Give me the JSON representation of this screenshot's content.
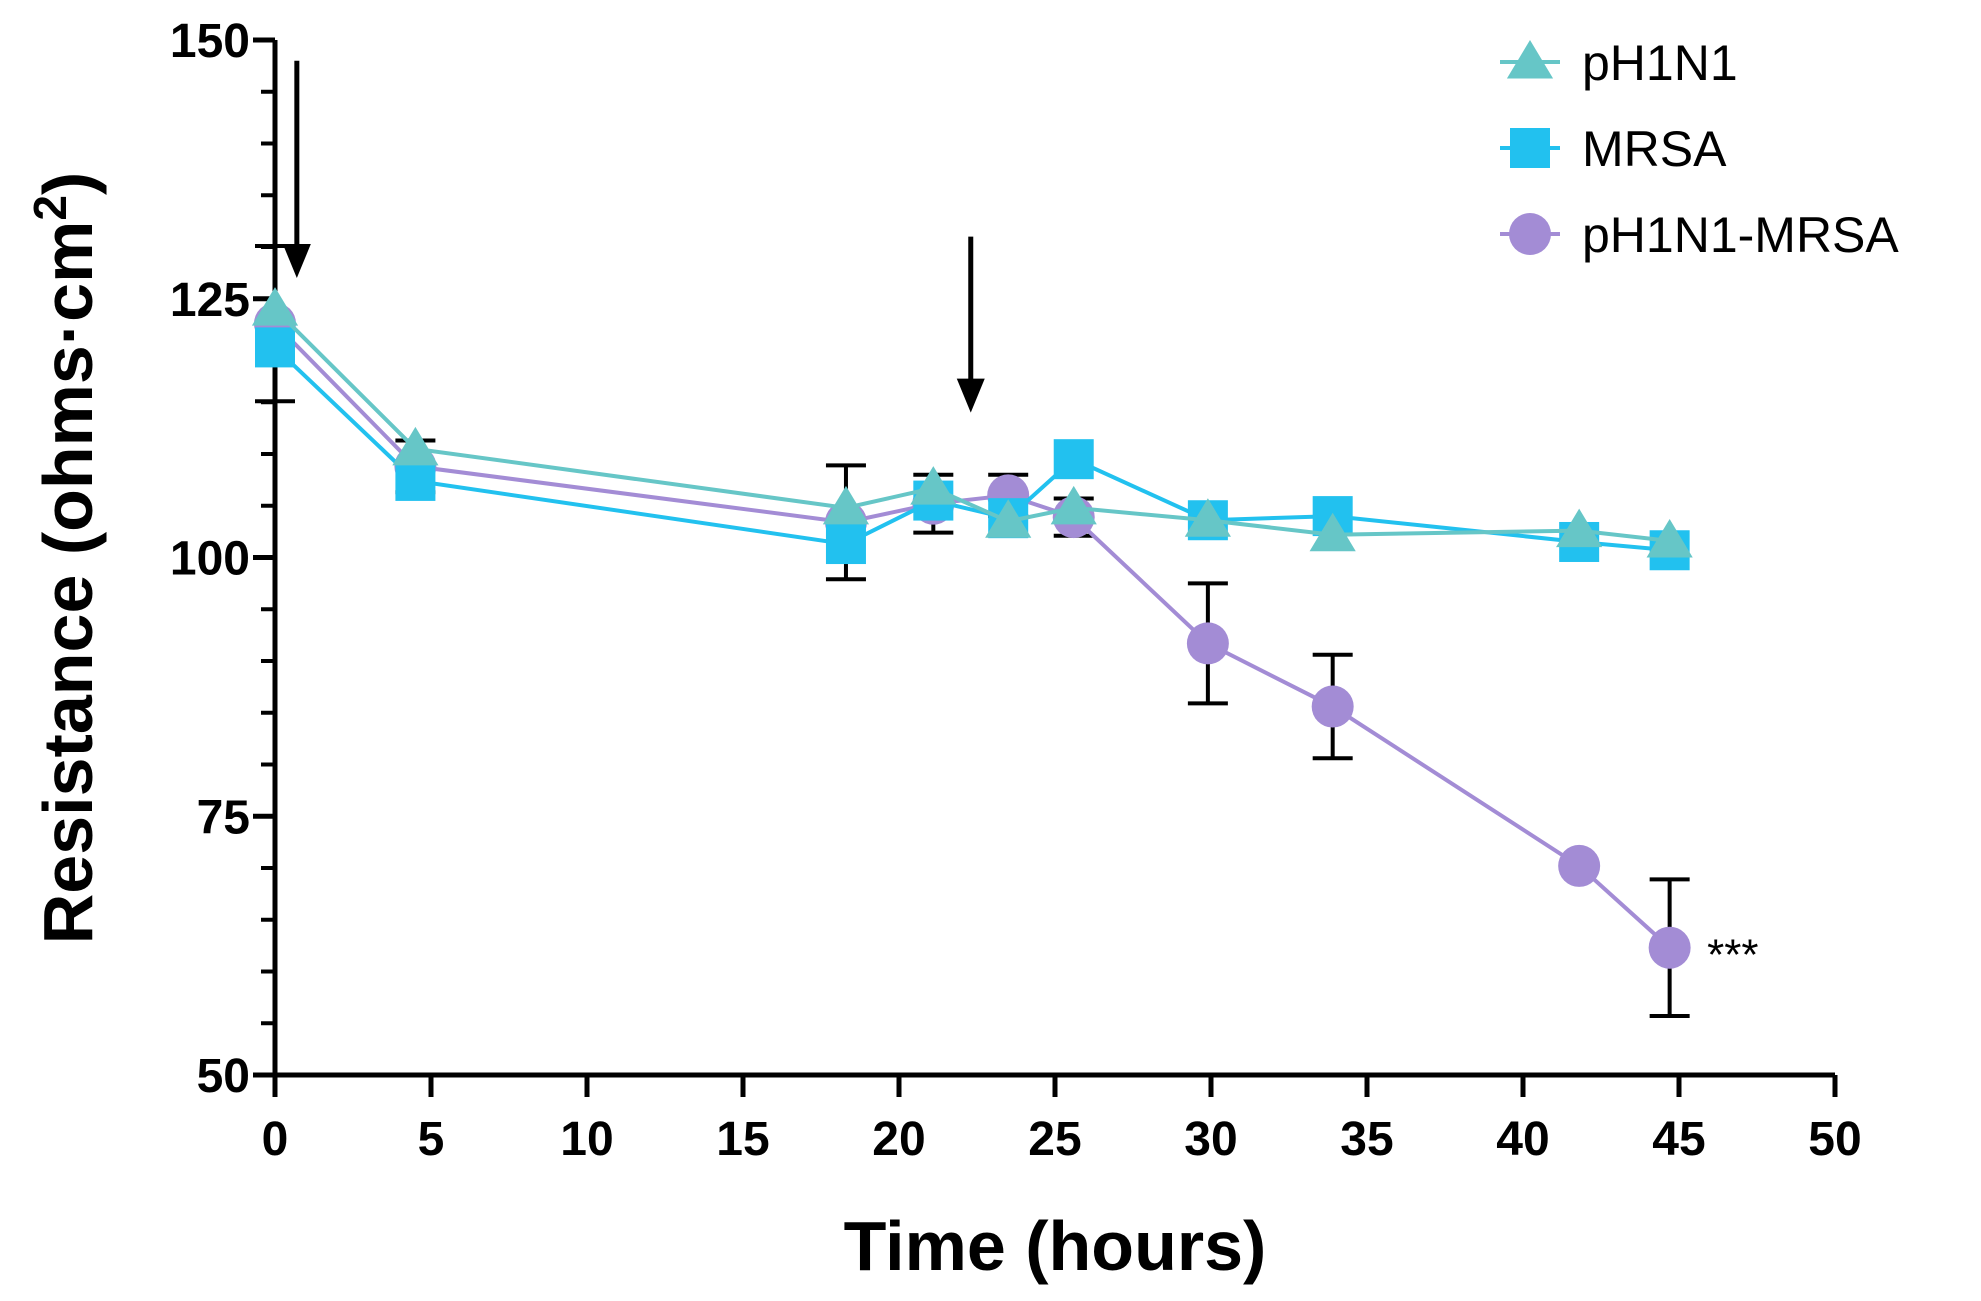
{
  "chart_data": {
    "type": "line",
    "xlabel": "Time (hours)",
    "ylabel": {
      "prefix": "Resistance (ohms",
      "dot": "·",
      "unit": "cm",
      "superscript": "2",
      "suffix": ")"
    },
    "xlim": [
      0,
      50
    ],
    "ylim": [
      50,
      150
    ],
    "x_ticks": [
      "0",
      "5",
      "10",
      "15",
      "20",
      "25",
      "30",
      "35",
      "40",
      "45",
      "50"
    ],
    "y_ticks": [
      "50",
      "75",
      "100",
      "125",
      "150"
    ],
    "legend_position": "top-right",
    "series": [
      {
        "name": "pH1N1",
        "marker": "triangle",
        "color": "#66c6c7",
        "x": [
          0,
          4.5,
          18.3,
          21.1,
          23.5,
          25.6,
          29.9,
          33.9,
          41.8,
          44.7
        ],
        "y": [
          124.0,
          110.5,
          104.8,
          106.7,
          103.5,
          104.8,
          103.6,
          102.2,
          102.6,
          101.6
        ]
      },
      {
        "name": "MRSA",
        "marker": "square",
        "color": "#22c1ef",
        "x": [
          0,
          4.5,
          18.3,
          21.1,
          23.5,
          25.6,
          29.9,
          33.9,
          41.8,
          44.7
        ],
        "y": [
          120.3,
          107.4,
          101.3,
          105.5,
          103.8,
          109.5,
          103.6,
          104.0,
          101.5,
          100.7
        ]
      },
      {
        "name": "pH1N1-MRSA",
        "marker": "circle",
        "color": "#a38cd5",
        "x": [
          0,
          4.5,
          18.3,
          21.1,
          23.5,
          25.6,
          29.9,
          33.9,
          41.8,
          44.7
        ],
        "y": [
          122.6,
          108.8,
          103.4,
          105.2,
          106.0,
          103.9,
          91.7,
          85.6,
          70.2,
          62.3
        ],
        "error": [
          7.5,
          2.5,
          5.5,
          2.8,
          2.0,
          1.8,
          5.8,
          5.0,
          0,
          6.6
        ]
      }
    ],
    "annotations": [
      {
        "text": "***",
        "x": 45.9,
        "y": 62.3
      }
    ],
    "arrows": [
      {
        "x": 0.7,
        "y_start": 148,
        "y_end": 127
      },
      {
        "x": 22.3,
        "y_start": 131,
        "y_end": 114
      }
    ]
  }
}
